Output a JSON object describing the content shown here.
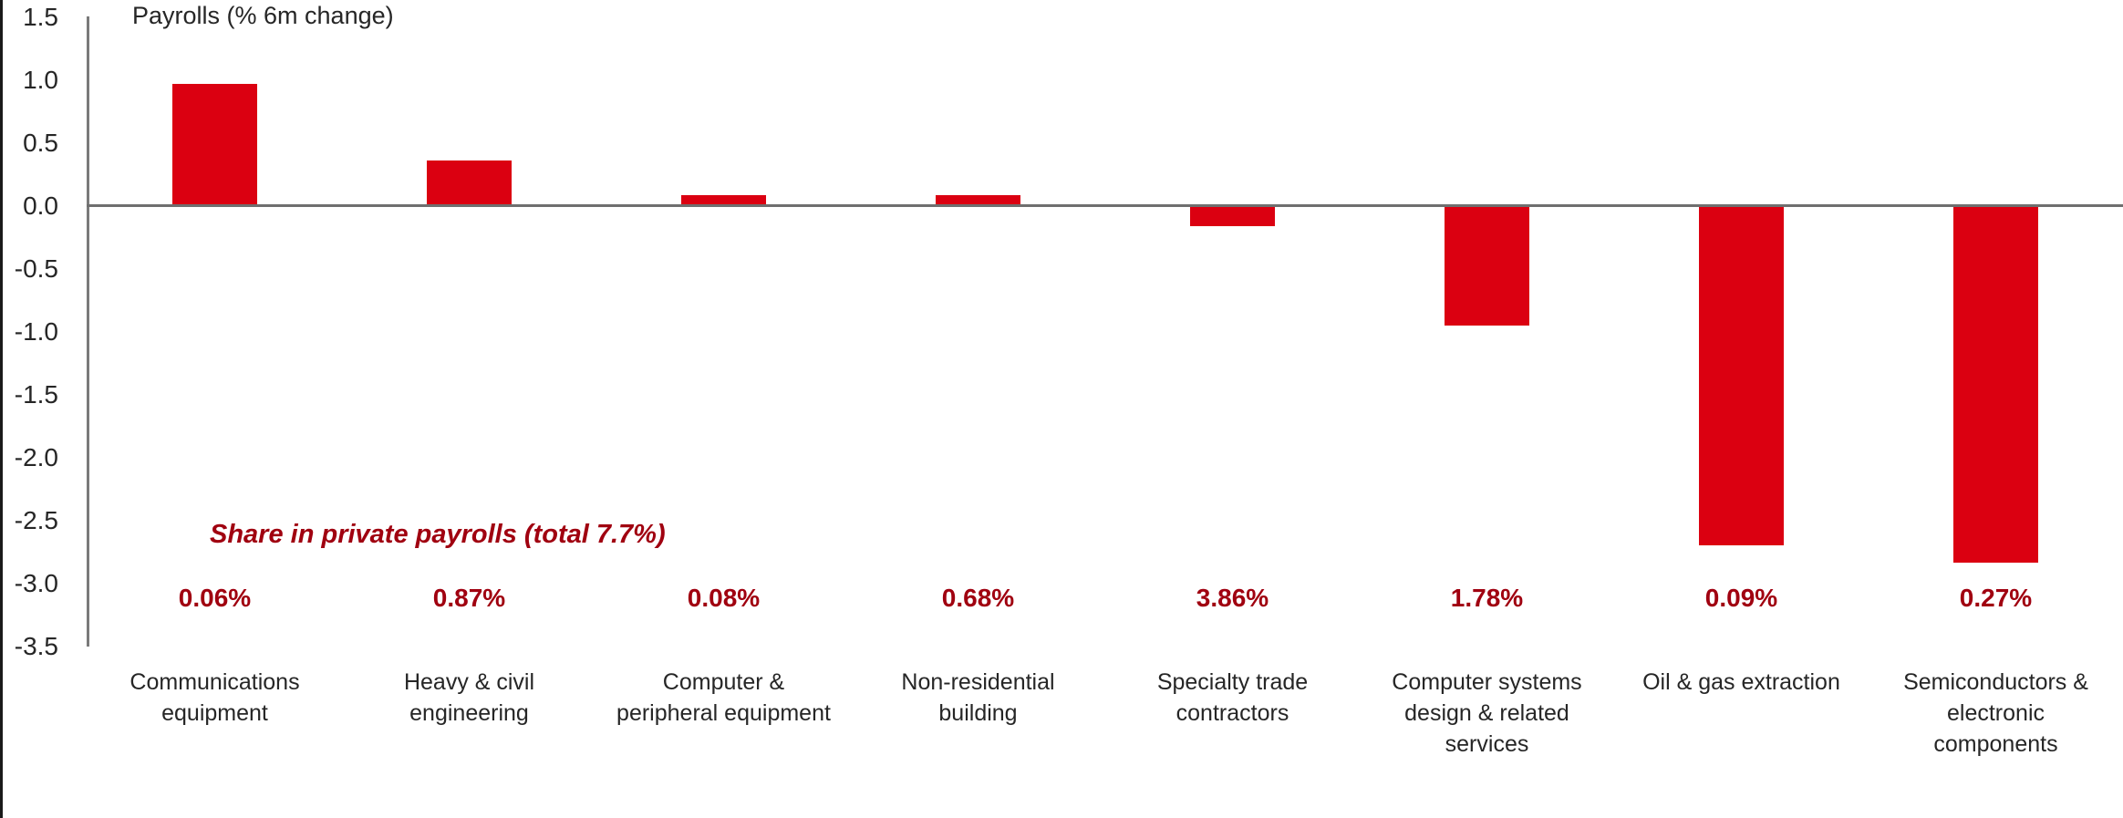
{
  "chart_data": {
    "type": "bar",
    "title": "Payrolls (% 6m change)",
    "categories": [
      "Communications\nequipment",
      "Heavy & civil\nengineering",
      "Computer &\nperipheral equipment",
      "Non-residential\nbuilding",
      "Specialty trade\ncontractors",
      "Computer systems\ndesign & related\nservices",
      "Oil & gas extraction",
      "Semiconductors &\nelectronic\ncomponents"
    ],
    "values": [
      0.97,
      0.36,
      0.08,
      0.08,
      -0.16,
      -0.95,
      -2.7,
      -2.84
    ],
    "share_labels": [
      "0.06%",
      "0.87%",
      "0.08%",
      "0.68%",
      "3.86%",
      "1.78%",
      "0.09%",
      "0.27%"
    ],
    "annotation": "Share in private payrolls (total 7.7%)",
    "y_tick_values": [
      1.5,
      1.0,
      0.5,
      0.0,
      -0.5,
      -1.0,
      -1.5,
      -2.0,
      -2.5,
      -3.0,
      -3.5
    ],
    "y_tick_labels": [
      "1.5",
      "1.0",
      "0.5",
      "0.0",
      "-0.5",
      "-1.0",
      "-1.5",
      "-2.0",
      "-2.5",
      "-3.0",
      "-3.5"
    ],
    "ylim": [
      -3.5,
      1.5
    ],
    "xlabel": "",
    "ylabel": "",
    "grid": false,
    "legend": null,
    "bar_color": "#DB0011",
    "accent_text_color": "#A00010",
    "axis_color": "#7a7a7a",
    "text_color": "#262626"
  }
}
